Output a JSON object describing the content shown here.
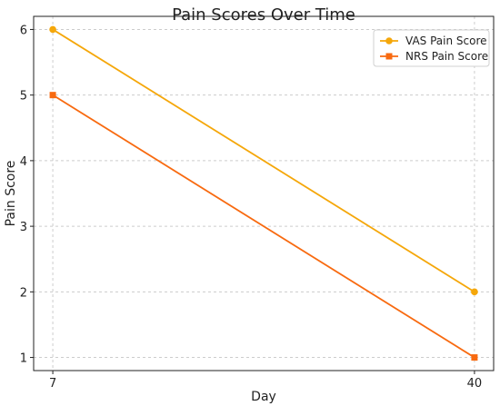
{
  "chart_data": {
    "type": "line",
    "title": "Pain Scores Over Time",
    "xlabel": "Day",
    "ylabel": "Pain Score",
    "x": [
      7,
      40
    ],
    "xticks": [
      "7",
      "40"
    ],
    "yticks": [
      "1",
      "2",
      "3",
      "4",
      "5",
      "6"
    ],
    "xlim": [
      5.5,
      41.5
    ],
    "ylim": [
      0.8,
      6.2
    ],
    "grid": true,
    "legend_position": "top-right",
    "series": [
      {
        "name": "VAS Pain Score",
        "values": [
          6,
          2
        ],
        "color": "#f5a70a",
        "marker": "circle"
      },
      {
        "name": "NRS Pain Score",
        "values": [
          5,
          1
        ],
        "color": "#f86a10",
        "marker": "square"
      }
    ]
  }
}
